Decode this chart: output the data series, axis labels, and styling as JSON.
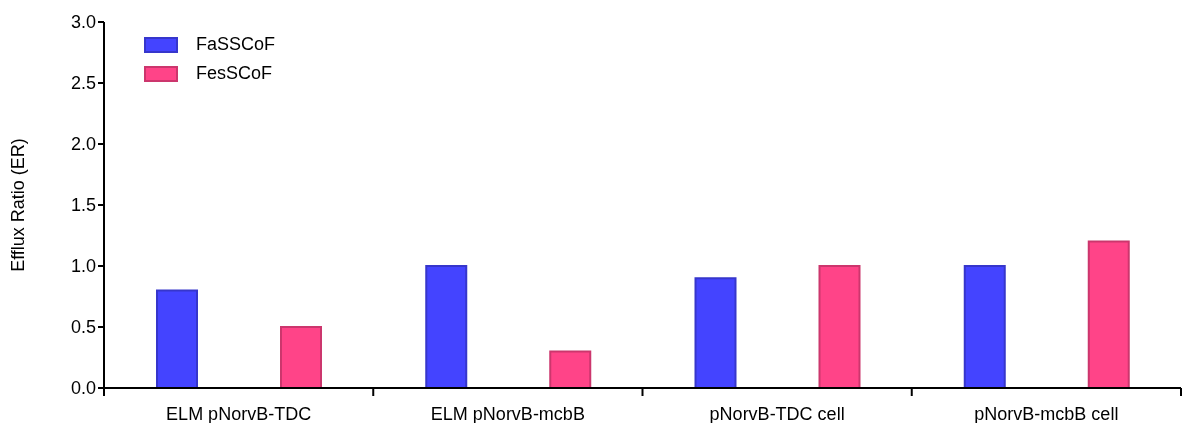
{
  "chart_data": {
    "type": "bar",
    "ylabel": "Efflux Ratio (ER)",
    "categories": [
      "ELM pNorvB-TDC",
      "ELM pNorvB-mcbB",
      "pNorvB-TDC cell",
      "pNorvB-mcbB cell"
    ],
    "series": [
      {
        "name": "FaSSCoF",
        "color": "#4444ff",
        "values": [
          0.8,
          1.0,
          0.9,
          1.0
        ]
      },
      {
        "name": "FesSCoF",
        "color": "#ff4488",
        "values": [
          0.5,
          0.3,
          1.0,
          1.2
        ]
      }
    ],
    "ylim": [
      0,
      3
    ],
    "yticks": [
      {
        "value": 0,
        "label": "0.0"
      },
      {
        "value": 0.5,
        "label": "0.5"
      },
      {
        "value": 1,
        "label": "1.0"
      },
      {
        "value": 1.5,
        "label": "1.5"
      },
      {
        "value": 2,
        "label": "2.0"
      },
      {
        "value": 2.5,
        "label": "2.5"
      },
      {
        "value": 3,
        "label": "3.0"
      }
    ],
    "grid": false,
    "legend": "top left"
  }
}
